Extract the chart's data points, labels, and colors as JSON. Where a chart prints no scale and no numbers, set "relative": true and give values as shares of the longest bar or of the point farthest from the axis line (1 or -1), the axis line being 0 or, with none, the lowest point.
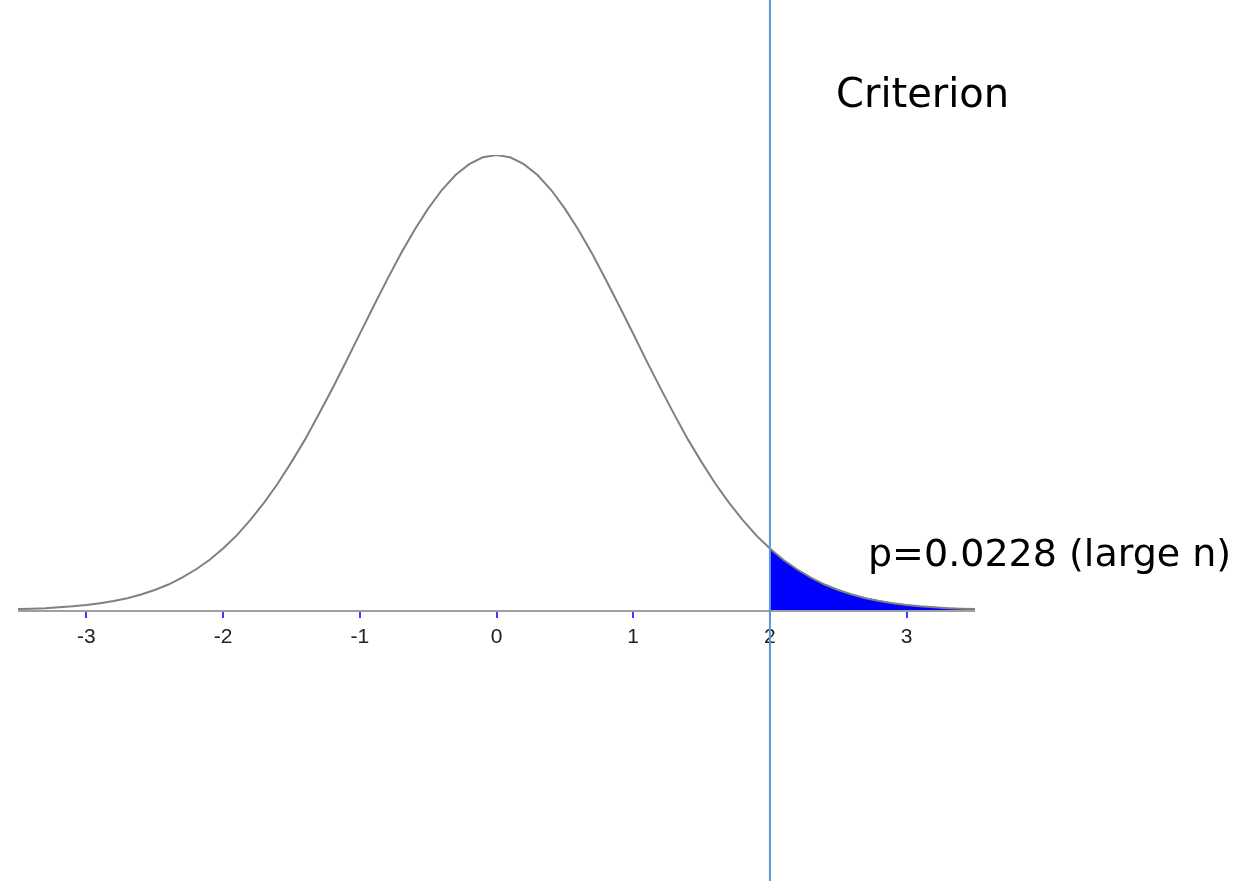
{
  "chart_data": {
    "type": "line",
    "relative": true,
    "tick_labels": "x",
    "xlim": [
      -3.5,
      3.5
    ],
    "xticks": [
      -3,
      -2,
      -1,
      0,
      1,
      2,
      3
    ],
    "x": [
      -3.5,
      -3.4,
      -3.3,
      -3.2,
      -3.1,
      -3.0,
      -2.9,
      -2.8,
      -2.7,
      -2.6,
      -2.5,
      -2.4,
      -2.3,
      -2.2,
      -2.1,
      -2.0,
      -1.9,
      -1.8,
      -1.7,
      -1.6,
      -1.5,
      -1.4,
      -1.3,
      -1.2,
      -1.1,
      -1.0,
      -0.9,
      -0.8,
      -0.7,
      -0.6,
      -0.5,
      -0.4,
      -0.3,
      -0.2,
      -0.1,
      0,
      0.1,
      0.2,
      0.3,
      0.4,
      0.5,
      0.6,
      0.7,
      0.8,
      0.9,
      1.0,
      1.1,
      1.2,
      1.3,
      1.4,
      1.5,
      1.6,
      1.7,
      1.8,
      1.9,
      2.0,
      2.1,
      2.2,
      2.3,
      2.4,
      2.5,
      2.6,
      2.7,
      2.8,
      2.9,
      3.0,
      3.1,
      3.2,
      3.3,
      3.4,
      3.5
    ],
    "series": [
      {
        "type": "area",
        "color": "#0000ff",
        "x": [
          2.0,
          2.1,
          2.2,
          2.3,
          2.4,
          2.5,
          2.6,
          2.7,
          2.8,
          2.9,
          3.0,
          3.1,
          3.2,
          3.3,
          3.4,
          3.5
        ],
        "values": [
          0.135,
          0.11,
          0.089,
          0.071,
          0.056,
          0.044,
          0.034,
          0.026,
          0.02,
          0.015,
          0.011,
          0.008,
          0.006,
          0.004,
          0.003,
          0.002
        ]
      },
      {
        "color": "#808080",
        "values": [
          0.002,
          0.003,
          0.004,
          0.006,
          0.008,
          0.011,
          0.015,
          0.02,
          0.026,
          0.034,
          0.044,
          0.056,
          0.071,
          0.089,
          0.11,
          0.135,
          0.164,
          0.198,
          0.236,
          0.278,
          0.325,
          0.375,
          0.43,
          0.487,
          0.546,
          0.607,
          0.667,
          0.726,
          0.783,
          0.835,
          0.882,
          0.923,
          0.956,
          0.98,
          0.995,
          1,
          0.995,
          0.98,
          0.956,
          0.923,
          0.882,
          0.835,
          0.783,
          0.726,
          0.667,
          0.607,
          0.546,
          0.487,
          0.43,
          0.375,
          0.325,
          0.278,
          0.236,
          0.198,
          0.164,
          0.135,
          0.11,
          0.089,
          0.071,
          0.056,
          0.044,
          0.034,
          0.026,
          0.02,
          0.015,
          0.011,
          0.008,
          0.006,
          0.004,
          0.003,
          0.002
        ]
      }
    ],
    "ref_lines": [
      {
        "axis": "x",
        "value": 2,
        "label": "Criterion",
        "color": "#5b9bd5"
      }
    ],
    "annotations": [
      "p=0.0228 (large n)"
    ]
  }
}
